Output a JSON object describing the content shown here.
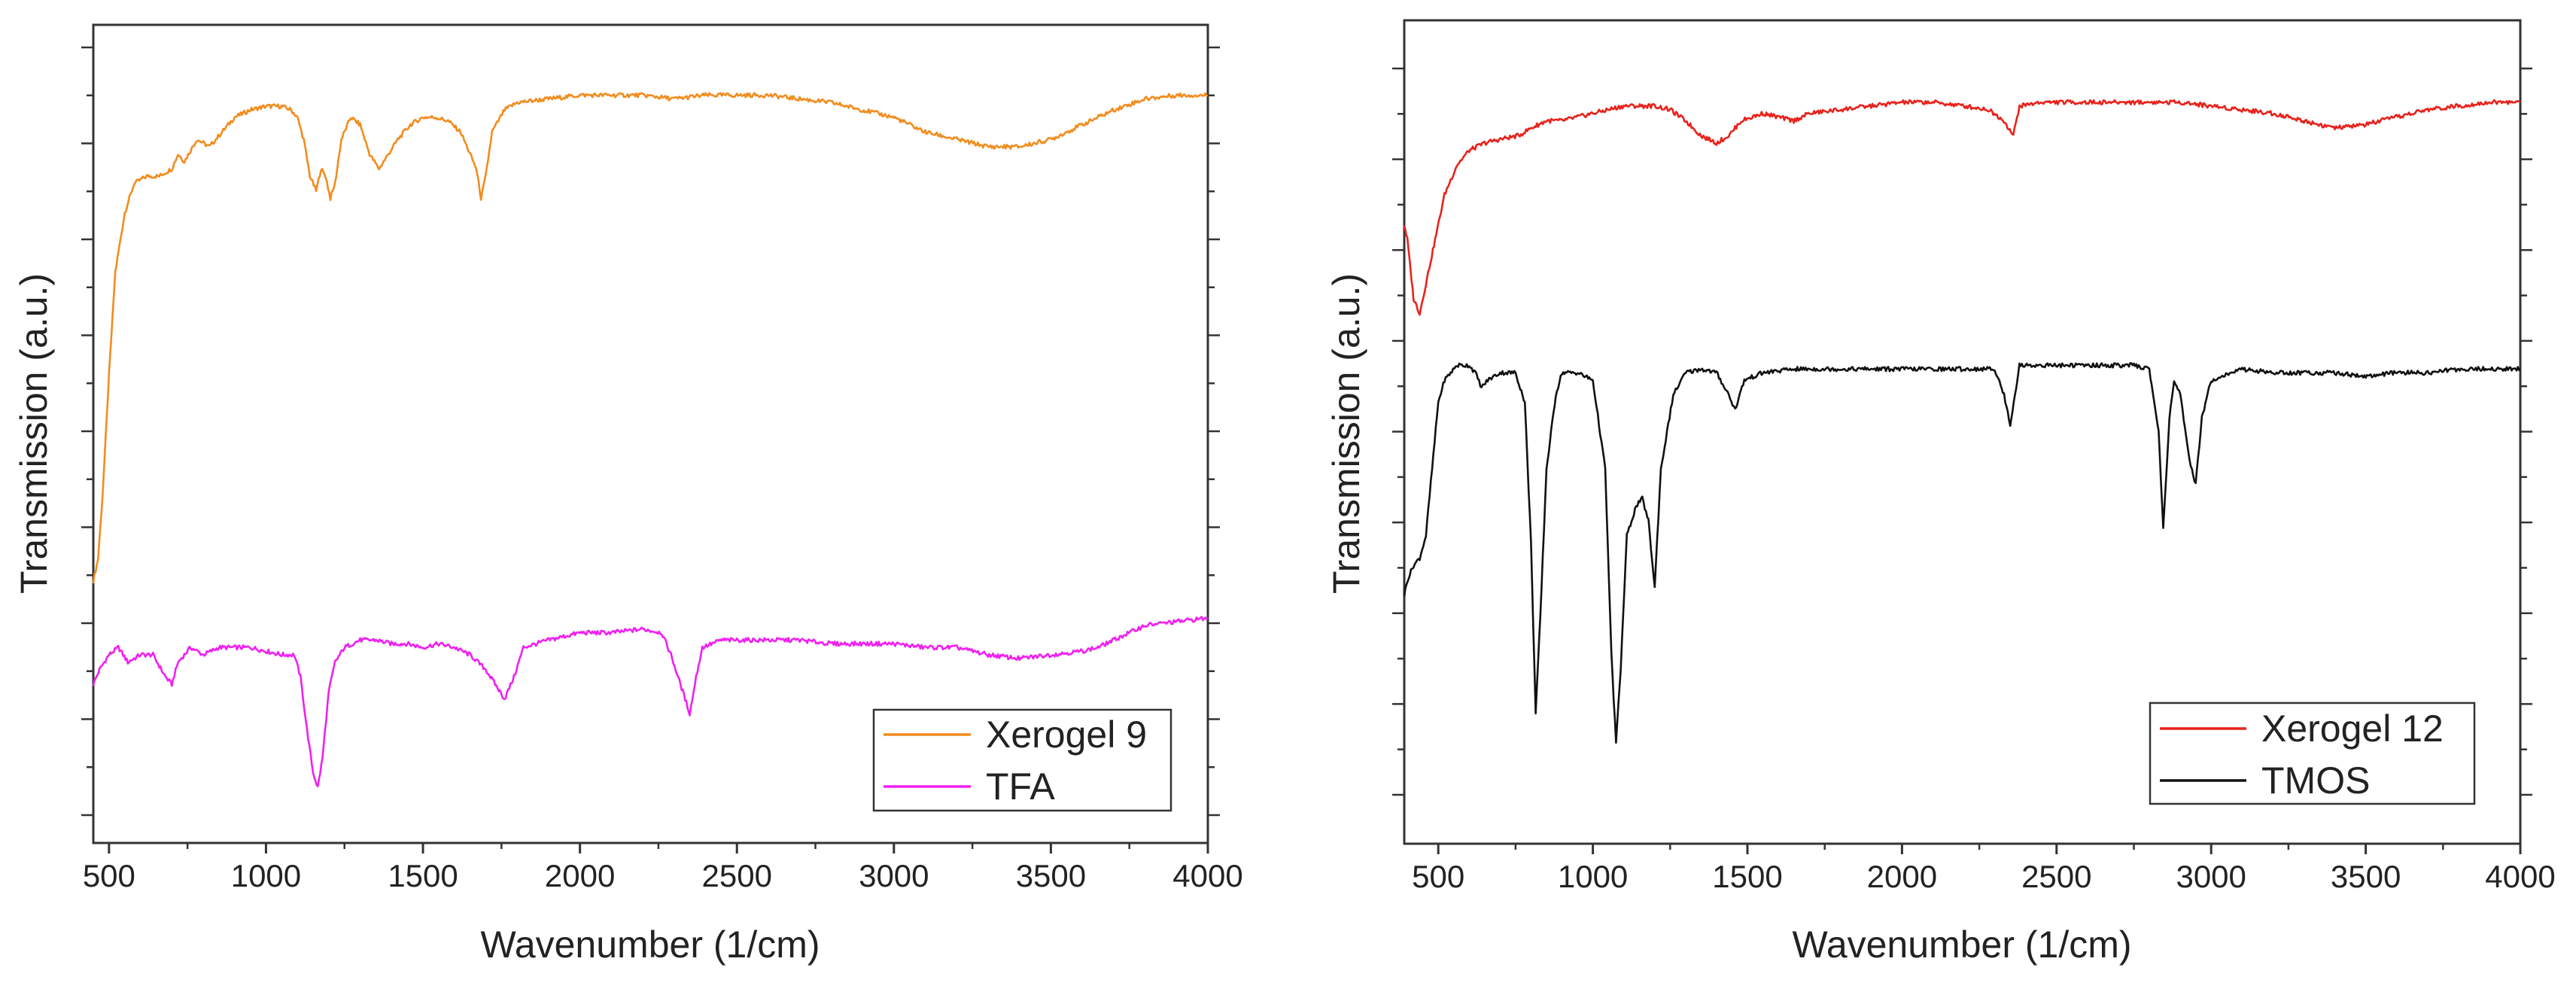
{
  "chart_data": [
    {
      "type": "line",
      "title": "",
      "xlabel": "Wavenumber (1/cm)",
      "ylabel": "Transmission (a.u.)",
      "xlim": [
        450,
        4000
      ],
      "ylim": [
        0,
        100
      ],
      "xticks": [
        500,
        1000,
        1500,
        2000,
        2500,
        3000,
        3500,
        4000
      ],
      "grid": false,
      "legend_position": "bottom-right",
      "series": [
        {
          "name": "Xerogel 9",
          "color": "#f28c1e",
          "points": [
            [
              450,
              30
            ],
            [
              465,
              33
            ],
            [
              480,
              42
            ],
            [
              500,
              58
            ],
            [
              520,
              72
            ],
            [
              550,
              80
            ],
            [
              580,
              84
            ],
            [
              620,
              85
            ],
            [
              660,
              85
            ],
            [
              700,
              86
            ],
            [
              720,
              88
            ],
            [
              740,
              87
            ],
            [
              780,
              90
            ],
            [
              820,
              89
            ],
            [
              860,
              91
            ],
            [
              900,
              93
            ],
            [
              950,
              94
            ],
            [
              1000,
              94.5
            ],
            [
              1050,
              94.5
            ],
            [
              1080,
              94
            ],
            [
              1100,
              93
            ],
            [
              1120,
              90
            ],
            [
              1140,
              85
            ],
            [
              1160,
              83
            ],
            [
              1175,
              86
            ],
            [
              1190,
              85
            ],
            [
              1205,
              82
            ],
            [
              1220,
              84
            ],
            [
              1240,
              90
            ],
            [
              1270,
              93
            ],
            [
              1300,
              92
            ],
            [
              1330,
              88
            ],
            [
              1360,
              86
            ],
            [
              1390,
              88
            ],
            [
              1420,
              90
            ],
            [
              1460,
              92
            ],
            [
              1500,
              93
            ],
            [
              1540,
              93
            ],
            [
              1580,
              92.5
            ],
            [
              1620,
              91
            ],
            [
              1650,
              88
            ],
            [
              1670,
              86
            ],
            [
              1685,
              82
            ],
            [
              1700,
              85
            ],
            [
              1720,
              91
            ],
            [
              1760,
              94
            ],
            [
              1800,
              95
            ],
            [
              1900,
              95.5
            ],
            [
              2000,
              96
            ],
            [
              2100,
              96
            ],
            [
              2200,
              96
            ],
            [
              2300,
              95.5
            ],
            [
              2400,
              96
            ],
            [
              2500,
              96
            ],
            [
              2600,
              96
            ],
            [
              2700,
              95.5
            ],
            [
              2800,
              95
            ],
            [
              2900,
              94
            ],
            [
              3000,
              93
            ],
            [
              3100,
              91
            ],
            [
              3200,
              90
            ],
            [
              3300,
              89
            ],
            [
              3400,
              89
            ],
            [
              3500,
              90
            ],
            [
              3600,
              92
            ],
            [
              3700,
              94
            ],
            [
              3800,
              95.5
            ],
            [
              3900,
              96
            ],
            [
              4000,
              96
            ]
          ]
        },
        {
          "name": "TFA",
          "color": "#f020f0",
          "points": [
            [
              450,
              16
            ],
            [
              470,
              18
            ],
            [
              500,
              20
            ],
            [
              530,
              21
            ],
            [
              560,
              19
            ],
            [
              600,
              20
            ],
            [
              640,
              20
            ],
            [
              680,
              17
            ],
            [
              700,
              16
            ],
            [
              720,
              19
            ],
            [
              760,
              21
            ],
            [
              800,
              20
            ],
            [
              850,
              21
            ],
            [
              900,
              21
            ],
            [
              950,
              21
            ],
            [
              1000,
              20.5
            ],
            [
              1050,
              20
            ],
            [
              1090,
              20
            ],
            [
              1110,
              17
            ],
            [
              1130,
              10
            ],
            [
              1150,
              4
            ],
            [
              1165,
              2
            ],
            [
              1180,
              6
            ],
            [
              1200,
              15
            ],
            [
              1220,
              19
            ],
            [
              1250,
              21
            ],
            [
              1300,
              22
            ],
            [
              1350,
              22
            ],
            [
              1400,
              21.5
            ],
            [
              1450,
              21.5
            ],
            [
              1500,
              21
            ],
            [
              1550,
              21.5
            ],
            [
              1600,
              21
            ],
            [
              1650,
              20
            ],
            [
              1700,
              18
            ],
            [
              1730,
              16
            ],
            [
              1760,
              14
            ],
            [
              1790,
              17
            ],
            [
              1820,
              21
            ],
            [
              1900,
              22
            ],
            [
              2000,
              23
            ],
            [
              2100,
              23
            ],
            [
              2200,
              23.5
            ],
            [
              2260,
              23
            ],
            [
              2290,
              20
            ],
            [
              2320,
              16
            ],
            [
              2350,
              12
            ],
            [
              2370,
              17
            ],
            [
              2390,
              21
            ],
            [
              2450,
              22
            ],
            [
              2500,
              22
            ],
            [
              2600,
              22
            ],
            [
              2700,
              22
            ],
            [
              2800,
              21.5
            ],
            [
              2900,
              21.5
            ],
            [
              3000,
              21.5
            ],
            [
              3100,
              21
            ],
            [
              3200,
              21
            ],
            [
              3300,
              20
            ],
            [
              3400,
              19.5
            ],
            [
              3500,
              20
            ],
            [
              3600,
              20.5
            ],
            [
              3650,
              21
            ],
            [
              3700,
              22
            ],
            [
              3800,
              24
            ],
            [
              3900,
              24.5
            ],
            [
              4000,
              25
            ]
          ]
        }
      ]
    },
    {
      "type": "line",
      "title": "",
      "xlabel": "Wavenumber (1/cm)",
      "ylabel": "Transmission (a.u.)",
      "xlim": [
        390,
        4000
      ],
      "ylim": [
        0,
        100
      ],
      "xticks": [
        500,
        1000,
        1500,
        2000,
        2500,
        3000,
        3500,
        4000
      ],
      "grid": false,
      "legend_position": "bottom-right",
      "series": [
        {
          "name": "Xerogel 12",
          "color": "#e8221c",
          "points": [
            [
              390,
              78
            ],
            [
              400,
              76
            ],
            [
              410,
              72
            ],
            [
              420,
              68
            ],
            [
              430,
              67
            ],
            [
              440,
              66
            ],
            [
              460,
              70
            ],
            [
              490,
              76
            ],
            [
              520,
              82
            ],
            [
              560,
              86
            ],
            [
              600,
              88
            ],
            [
              650,
              89
            ],
            [
              700,
              89.5
            ],
            [
              760,
              90
            ],
            [
              800,
              91
            ],
            [
              850,
              92
            ],
            [
              900,
              92
            ],
            [
              950,
              92.5
            ],
            [
              1000,
              93
            ],
            [
              1100,
              94
            ],
            [
              1200,
              94
            ],
            [
              1250,
              93.5
            ],
            [
              1300,
              92
            ],
            [
              1350,
              90
            ],
            [
              1400,
              89
            ],
            [
              1440,
              90
            ],
            [
              1480,
              92
            ],
            [
              1550,
              93
            ],
            [
              1600,
              92.5
            ],
            [
              1650,
              92
            ],
            [
              1700,
              93
            ],
            [
              1800,
              93.5
            ],
            [
              1900,
              94
            ],
            [
              2000,
              94.5
            ],
            [
              2100,
              94.5
            ],
            [
              2200,
              94
            ],
            [
              2280,
              93.5
            ],
            [
              2330,
              92
            ],
            [
              2360,
              90
            ],
            [
              2380,
              94
            ],
            [
              2450,
              94.5
            ],
            [
              2500,
              94.5
            ],
            [
              2600,
              94.5
            ],
            [
              2700,
              94.5
            ],
            [
              2800,
              94.5
            ],
            [
              2900,
              94.5
            ],
            [
              3000,
              94
            ],
            [
              3100,
              93.5
            ],
            [
              3200,
              93
            ],
            [
              3300,
              92
            ],
            [
              3400,
              91
            ],
            [
              3500,
              91.5
            ],
            [
              3600,
              92.5
            ],
            [
              3700,
              93.5
            ],
            [
              3800,
              94
            ],
            [
              3900,
              94.5
            ],
            [
              4000,
              94.5
            ]
          ]
        },
        {
          "name": "TMOS",
          "color": "#111111",
          "points": [
            [
              390,
              28
            ],
            [
              400,
              30
            ],
            [
              420,
              32
            ],
            [
              440,
              33
            ],
            [
              460,
              36
            ],
            [
              480,
              45
            ],
            [
              500,
              54
            ],
            [
              520,
              57
            ],
            [
              560,
              59
            ],
            [
              600,
              59
            ],
            [
              620,
              58
            ],
            [
              640,
              56
            ],
            [
              660,
              57
            ],
            [
              700,
              58
            ],
            [
              750,
              58
            ],
            [
              780,
              54
            ],
            [
              800,
              35
            ],
            [
              815,
              12
            ],
            [
              830,
              25
            ],
            [
              850,
              45
            ],
            [
              880,
              55
            ],
            [
              900,
              58
            ],
            [
              950,
              58
            ],
            [
              1000,
              57
            ],
            [
              1040,
              45
            ],
            [
              1060,
              20
            ],
            [
              1075,
              8
            ],
            [
              1090,
              18
            ],
            [
              1110,
              36
            ],
            [
              1140,
              40
            ],
            [
              1160,
              41
            ],
            [
              1180,
              38
            ],
            [
              1200,
              29
            ],
            [
              1220,
              45
            ],
            [
              1260,
              55
            ],
            [
              1300,
              58
            ],
            [
              1350,
              58.5
            ],
            [
              1400,
              58
            ],
            [
              1440,
              55
            ],
            [
              1460,
              53
            ],
            [
              1490,
              57
            ],
            [
              1550,
              58
            ],
            [
              1650,
              58.5
            ],
            [
              1700,
              58.5
            ],
            [
              1800,
              58.5
            ],
            [
              1900,
              58.5
            ],
            [
              2000,
              58.5
            ],
            [
              2100,
              58.5
            ],
            [
              2200,
              58.5
            ],
            [
              2300,
              58.5
            ],
            [
              2330,
              55
            ],
            [
              2350,
              51
            ],
            [
              2365,
              55
            ],
            [
              2380,
              59
            ],
            [
              2450,
              59
            ],
            [
              2550,
              59
            ],
            [
              2650,
              59
            ],
            [
              2750,
              59
            ],
            [
              2800,
              58.5
            ],
            [
              2830,
              50
            ],
            [
              2845,
              37
            ],
            [
              2865,
              52
            ],
            [
              2880,
              57
            ],
            [
              2900,
              55
            ],
            [
              2930,
              46
            ],
            [
              2950,
              43
            ],
            [
              2970,
              52
            ],
            [
              3000,
              57
            ],
            [
              3100,
              58.5
            ],
            [
              3200,
              58
            ],
            [
              3300,
              58
            ],
            [
              3400,
              58
            ],
            [
              3500,
              57.5
            ],
            [
              3600,
              58
            ],
            [
              3700,
              58
            ],
            [
              3800,
              58.5
            ],
            [
              3900,
              58.5
            ],
            [
              4000,
              58.5
            ]
          ]
        }
      ]
    }
  ]
}
